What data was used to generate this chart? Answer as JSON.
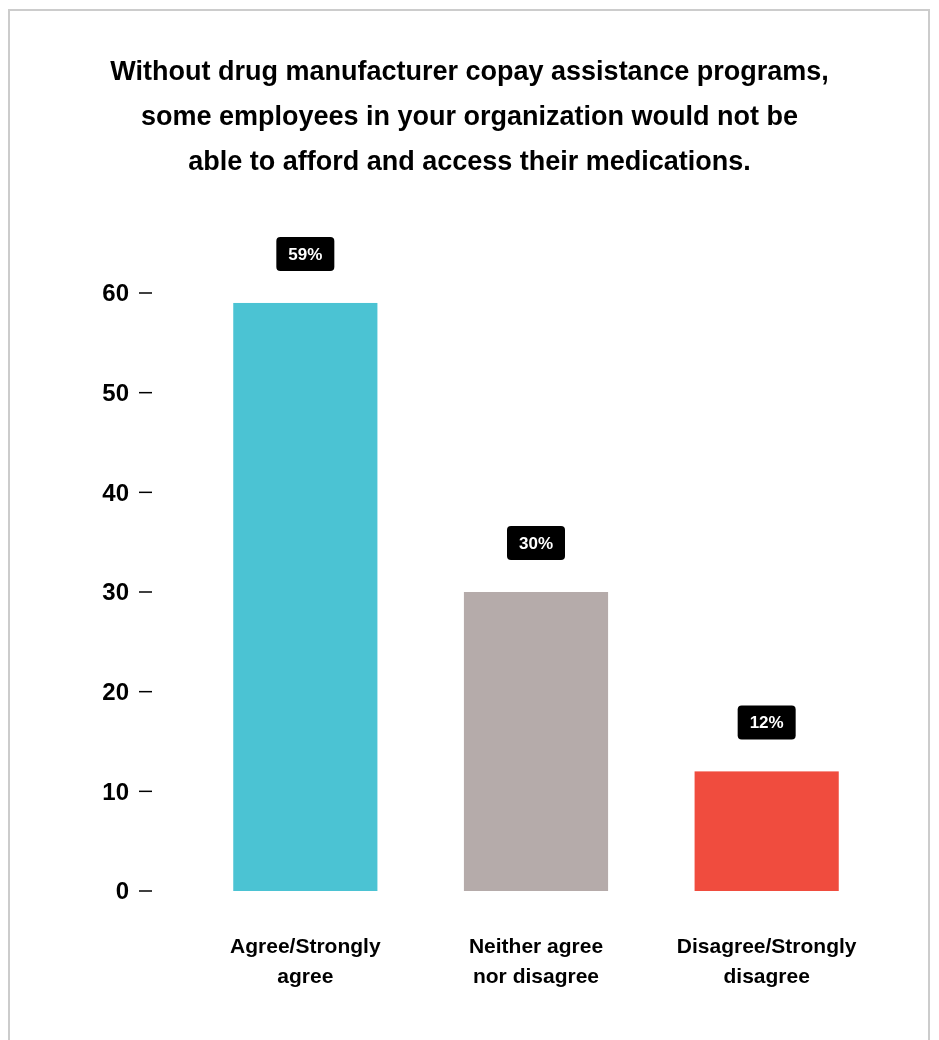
{
  "chart_data": {
    "type": "bar",
    "title": "Without drug manufacturer copay assistance programs, some employees in your organization would not be able to afford and access their medications.",
    "categories": [
      "Agree/Strongly agree",
      "Neither agree nor disagree",
      "Disagree/Strongly disagree"
    ],
    "values": [
      59,
      30,
      12
    ],
    "colors": [
      "#4bc3d3",
      "#b5abaa",
      "#f04c3e"
    ],
    "value_labels": [
      "59%",
      "30%",
      "12%"
    ],
    "ylim": [
      0,
      60
    ],
    "yticks": [
      0,
      10,
      20,
      30,
      40,
      50,
      60
    ],
    "grid": false
  }
}
